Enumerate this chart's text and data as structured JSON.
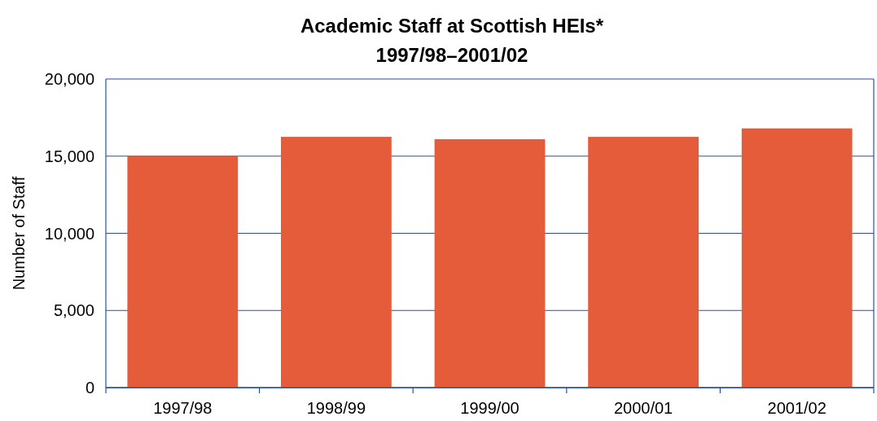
{
  "chart_data": {
    "type": "bar",
    "title": "Academic Staff at Scottish HEIs*",
    "subtitle": "1997/98–2001/02",
    "ylabel": "Number of Staff",
    "categories": [
      "1997/98",
      "1998/99",
      "1999/00",
      "2000/01",
      "2001/02"
    ],
    "values": [
      15000,
      16250,
      16100,
      16250,
      16800
    ],
    "color": "#e55c3b",
    "ylim": [
      0,
      20000
    ],
    "yticks": [
      {
        "value": 0,
        "label": "0"
      },
      {
        "value": 5000,
        "label": "5,000"
      },
      {
        "value": 10000,
        "label": "10,000"
      },
      {
        "value": 15000,
        "label": "15,000"
      },
      {
        "value": 20000,
        "label": "20,000"
      }
    ],
    "grid": "y"
  }
}
